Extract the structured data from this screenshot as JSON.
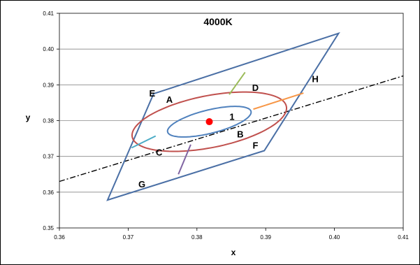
{
  "chart_data": {
    "type": "scatter",
    "title": "4000K",
    "xlabel": "x",
    "ylabel": "y",
    "xlim": [
      0.36,
      0.41
    ],
    "ylim": [
      0.35,
      0.41
    ],
    "grid": "horizontal",
    "x_ticks": [
      "0.36",
      "0.37",
      "0.38",
      "0.39",
      "0.40",
      "0.41"
    ],
    "y_ticks": [
      "0.35",
      "0.36",
      "0.37",
      "0.38",
      "0.39",
      "0.40",
      "0.41"
    ],
    "colors": {
      "quadrangle": "#4a6fa5",
      "inner_ellipse": "#4f81bd",
      "outer_ellipse": "#c0504d",
      "dashdot_line": "#000000",
      "center_point": "#ff0000",
      "seg_green": "#9bbb59",
      "seg_orange": "#f79646",
      "seg_cyan": "#4bacc6",
      "seg_purple": "#8064a2"
    },
    "center_point": {
      "x": 0.3818,
      "y": 0.3797
    },
    "quadrangle": [
      {
        "x": 0.367,
        "y": 0.3578
      },
      {
        "x": 0.3737,
        "y": 0.3875
      },
      {
        "x": 0.4006,
        "y": 0.4044
      },
      {
        "x": 0.3898,
        "y": 0.3716
      }
    ],
    "dashdot_line": [
      {
        "x": 0.36,
        "y": 0.363
      },
      {
        "x": 0.41,
        "y": 0.3925
      }
    ],
    "inner_ellipse": {
      "cx": 0.3818,
      "cy": 0.3797,
      "a": 0.0068,
      "b": 0.003,
      "angle_deg": 30
    },
    "outer_ellipse": {
      "cx": 0.3818,
      "cy": 0.3797,
      "a": 0.0122,
      "b": 0.0068,
      "angle_deg": 28
    },
    "segments": [
      {
        "color": "seg_green",
        "x1": 0.3847,
        "y1": 0.3873,
        "x2": 0.387,
        "y2": 0.3935
      },
      {
        "color": "seg_orange",
        "x1": 0.3882,
        "y1": 0.3832,
        "x2": 0.3955,
        "y2": 0.3877
      },
      {
        "color": "seg_cyan",
        "x1": 0.374,
        "y1": 0.3757,
        "x2": 0.3705,
        "y2": 0.3724
      },
      {
        "color": "seg_purple",
        "x1": 0.3791,
        "y1": 0.3733,
        "x2": 0.3773,
        "y2": 0.365
      }
    ],
    "region_labels": [
      {
        "text": "A",
        "x": 0.376,
        "y": 0.386
      },
      {
        "text": "B",
        "x": 0.3863,
        "y": 0.3763
      },
      {
        "text": "C",
        "x": 0.3745,
        "y": 0.3712
      },
      {
        "text": "D",
        "x": 0.3885,
        "y": 0.3893
      },
      {
        "text": "E",
        "x": 0.3735,
        "y": 0.3877
      },
      {
        "text": "F",
        "x": 0.3885,
        "y": 0.3732
      },
      {
        "text": "G",
        "x": 0.372,
        "y": 0.3623
      },
      {
        "text": "H",
        "x": 0.3972,
        "y": 0.3917
      },
      {
        "text": "1",
        "x": 0.3851,
        "y": 0.3812
      }
    ]
  }
}
